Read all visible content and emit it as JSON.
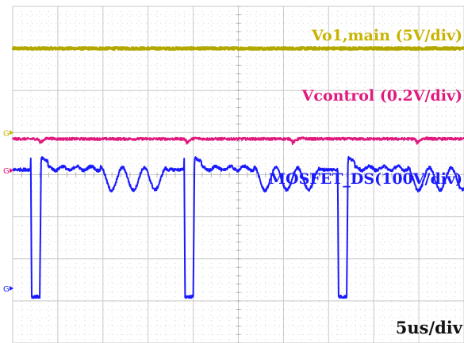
{
  "chart_data": {
    "type": "line",
    "title": "",
    "xlabel": "",
    "ylabel": "",
    "timebase": "5us/div",
    "grid": {
      "divisions_x": 10,
      "divisions_y": 8,
      "visible": true
    },
    "series": [
      {
        "name": "Vo1,main (5V/div)",
        "color": "#b2a800",
        "label_color": "#c8b400",
        "ground_marker": "G",
        "ground_color": "#c8b400",
        "ground_div": 5.0,
        "waveform": "flat",
        "level_div": 7.0,
        "noise_div": 0.03
      },
      {
        "name": "Vcontrol (0.2V/div)",
        "color": "#e0197f",
        "label_color": "#e0197f",
        "ground_marker": "G",
        "ground_color": "#e0197f",
        "ground_div": 4.1,
        "waveform": "control",
        "level_div": 4.85,
        "noise_div": 0.03,
        "dip_times_div": [
          0.6,
          3.85,
          6.2,
          8.95
        ],
        "dip_depth_div": 0.1
      },
      {
        "name": "MOSFET_DS(100V/div)",
        "color": "#1a1aff",
        "label_color": "#1a1aff",
        "ground_marker": "G",
        "ground_color": "#1a1aff",
        "ground_div": 1.3,
        "waveform": "switching",
        "high_div": 4.4,
        "plateau_div": 4.15,
        "low_div": 1.1,
        "period_div": 3.4,
        "first_fall_div": 0.4,
        "low_width_div": 0.2,
        "ring_cycles": 3,
        "ring_amplitude_div": 0.28,
        "ring_mid_div": 3.85
      }
    ]
  }
}
